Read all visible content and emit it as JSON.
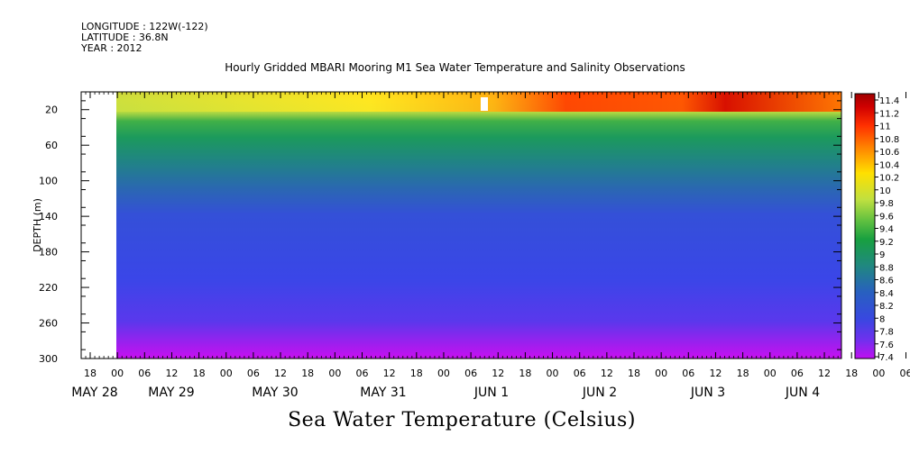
{
  "header": {
    "longitude": "LONGITUDE : 122W(-122)",
    "latitude": "LATITUDE : 36.8N",
    "year": "YEAR : 2012"
  },
  "chart_data": {
    "type": "heatmap",
    "title": "Hourly Gridded MBARI Mooring M1 Sea Water Temperature and Salinity Observations",
    "xlabel": "Sea Water Temperature (Celsius)",
    "ylabel": "DEPTH (m)",
    "y_axis": {
      "ticks": [
        20,
        60,
        100,
        140,
        180,
        220,
        260,
        300
      ],
      "range": [
        0,
        300
      ],
      "inverted": true
    },
    "x_axis": {
      "hour_labels": [
        "18",
        "00",
        "06",
        "12",
        "18",
        "00",
        "06",
        "12",
        "18",
        "00",
        "06",
        "12",
        "18",
        "00",
        "06",
        "12",
        "18",
        "00",
        "06",
        "12",
        "18",
        "00",
        "06",
        "12",
        "18",
        "00",
        "06",
        "12",
        "18",
        "00",
        "06",
        "12"
      ],
      "day_labels": [
        "MAY 28",
        "MAY 29",
        "MAY 30",
        "MAY 31",
        "JUN  1",
        "JUN  2",
        "JUN  3",
        "JUN  4"
      ],
      "data_start": "MAY 29 00"
    },
    "colorbar": {
      "labels": [
        "11.4",
        "11.2",
        "11",
        "10.8",
        "10.6",
        "10.4",
        "10.2",
        "10",
        "9.8",
        "9.6",
        "9.4",
        "9.2",
        "9",
        "8.8",
        "8.6",
        "8.4",
        "8.2",
        "8",
        "7.8",
        "7.6",
        "7.4"
      ],
      "range": [
        7.4,
        11.4
      ]
    },
    "colors": {
      "max": "#a00000",
      "warm": "#ff8000",
      "mid": "#ffff00",
      "cool_green": "#18a040",
      "teal": "#208080",
      "blue": "#3848e0",
      "min": "#c010f0"
    }
  }
}
